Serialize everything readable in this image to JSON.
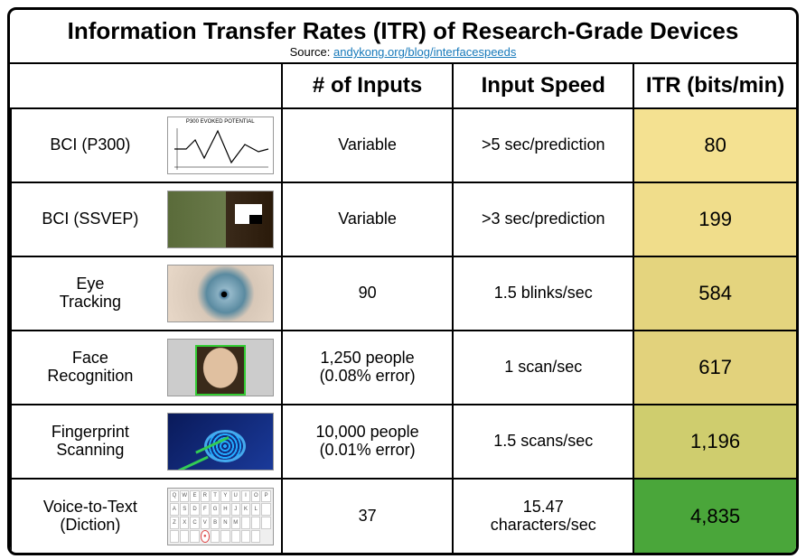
{
  "title": "Information Transfer Rates (ITR) of Research-Grade Devices",
  "source_label": "Source:",
  "source_link_text": "andykong.org/blog/interfacespeeds",
  "link_color": "#1779ba",
  "columns": [
    "",
    "# of Inputs",
    "Input Speed",
    "ITR (bits/min)"
  ],
  "itr_gradient": {
    "low_color": "#f4e191",
    "high_color": "#4aa63a",
    "min": 80,
    "max": 4835
  },
  "rows": [
    {
      "label": "BCI (P300)",
      "thumb": "p300",
      "inputs": "Variable",
      "speed": ">5 sec/prediction",
      "itr": "80",
      "itr_bg": "#f4e191"
    },
    {
      "label": "BCI (SSVEP)",
      "thumb": "ssvep",
      "inputs": "Variable",
      "speed": ">3 sec/prediction",
      "itr": "199",
      "itr_bg": "#f0dd8b"
    },
    {
      "label": "Eye\nTracking",
      "thumb": "eye",
      "inputs": "90",
      "speed": "1.5 blinks/sec",
      "itr": "584",
      "itr_bg": "#e4d47e"
    },
    {
      "label": "Face\nRecognition",
      "thumb": "face",
      "inputs": "1,250 people\n(0.08% error)",
      "speed": "1 scan/sec",
      "itr": "617",
      "itr_bg": "#e2d27c"
    },
    {
      "label": "Fingerprint\nScanning",
      "thumb": "finger",
      "inputs": "10,000 people\n(0.01% error)",
      "speed": "1.5 scans/sec",
      "itr": "1,196",
      "itr_bg": "#cfcd6e"
    },
    {
      "label": "Voice-to-Text\n(Diction)",
      "thumb": "voice",
      "inputs": "37",
      "speed": "15.47\ncharacters/sec",
      "itr": "4,835",
      "itr_bg": "#4aa63a"
    }
  ],
  "fonts": {
    "title_size": 26,
    "header_size": 24,
    "cell_size": 22,
    "source_size": 13
  },
  "border_color": "#000000",
  "background": "#ffffff"
}
